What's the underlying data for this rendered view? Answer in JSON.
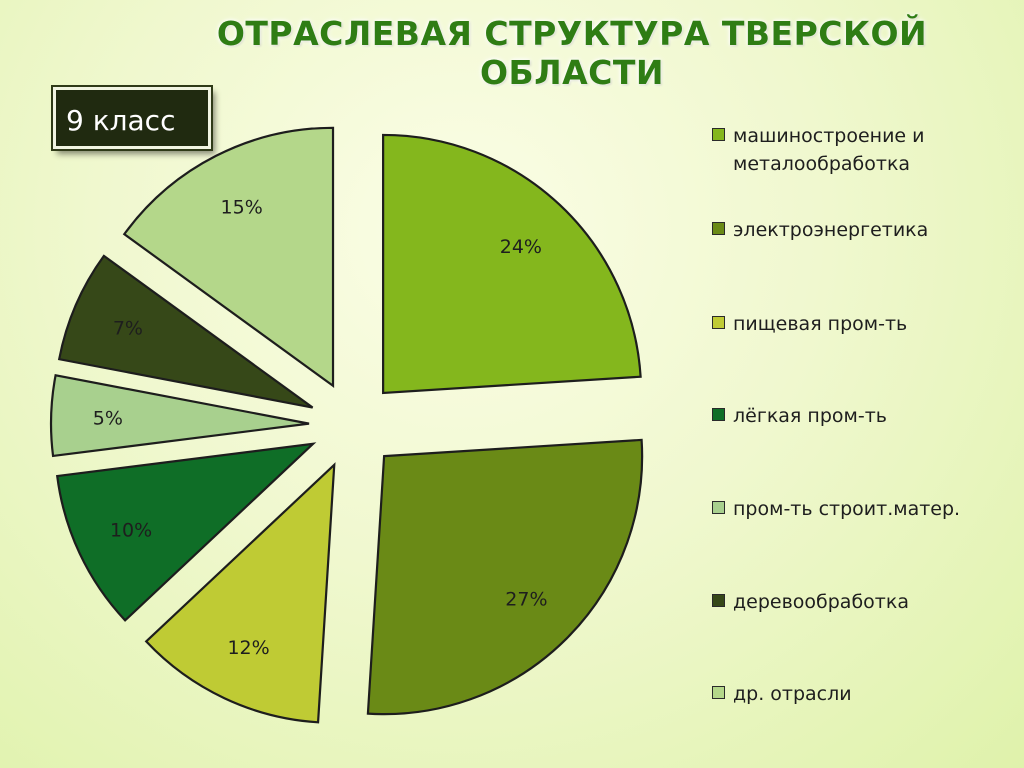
{
  "page": {
    "title": "ОТРАСЛЕВАЯ СТРУКТУРА ТВЕРСКОЙ ОБЛАСТИ",
    "badge": "9 класс"
  },
  "chart_data": {
    "type": "pie",
    "legend_position": "right",
    "exploded": true,
    "categories": [
      "машиностроение и металообработка",
      "электроэнергетика",
      "пищевая пром-ть",
      "лёгкая пром-ть",
      "пром-ть строит.матер.",
      "деревообработка",
      "др. отрасли"
    ],
    "values": [
      24,
      27,
      12,
      10,
      5,
      7,
      15
    ],
    "labels": [
      "24%",
      "27%",
      "12%",
      "10%",
      "5%",
      "7%",
      "15%"
    ],
    "colors": [
      "#84b71d",
      "#6a8a16",
      "#bfcb34",
      "#0f6e27",
      "#a8d08e",
      "#364818",
      "#b4d78a"
    ]
  },
  "legend": [
    {
      "label": "машиностроение и",
      "label_cont": "металообработка"
    },
    {
      "label": "электроэнергетика"
    },
    {
      "label": "пищевая пром-ть"
    },
    {
      "label": "лёгкая пром-ть"
    },
    {
      "label": "пром-ть строит.матер."
    },
    {
      "label": "деревообработка"
    },
    {
      "label": "др. отрасли"
    }
  ]
}
